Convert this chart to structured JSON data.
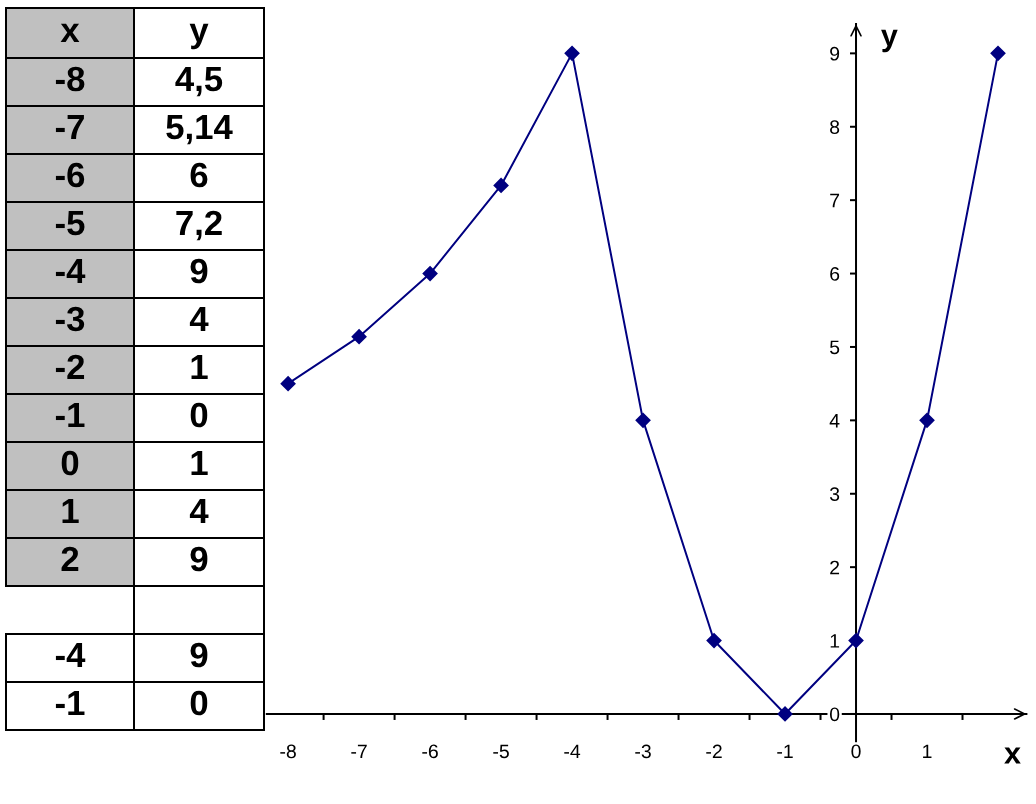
{
  "chart_data": {
    "type": "line",
    "xlabel": "x",
    "ylabel": "y",
    "x": [
      -8,
      -7,
      -6,
      -5,
      -4,
      -3,
      -2,
      -1,
      0,
      1,
      2
    ],
    "series": [
      {
        "color": "#000080",
        "values": [
          4.5,
          5.14,
          6,
          7.2,
          9,
          4,
          1,
          0,
          1,
          4,
          9
        ]
      }
    ],
    "marker": "diamond",
    "line_style": "solid",
    "xlim": [
      -8.3,
      2.4
    ],
    "ylim": [
      -0.6,
      9.4
    ],
    "xticks": [
      -8,
      {
        "value": -7.5,
        "label": null
      },
      -7,
      {
        "value": -6.5,
        "label": null
      },
      -6,
      {
        "value": -5.5,
        "label": null
      },
      -5,
      {
        "value": -4.5,
        "label": null
      },
      -4,
      {
        "value": -3.5,
        "label": null
      },
      -3,
      {
        "value": -2.5,
        "label": null
      },
      -2,
      {
        "value": -1.5,
        "label": null
      },
      -1,
      {
        "value": -0.5,
        "label": null
      },
      0,
      {
        "value": 0.5,
        "label": null
      },
      1,
      {
        "value": 1.5,
        "label": null
      }
    ],
    "yticks": [
      0,
      1,
      2,
      3,
      4,
      5,
      6,
      7,
      8,
      9
    ],
    "annotations": [
      "-8",
      "4,5",
      "-7",
      "5,14",
      "-6",
      "6",
      "-5",
      "7,2",
      "-4",
      "9",
      "-3",
      "4",
      "-2",
      "1",
      "-1",
      "0",
      "0",
      "1",
      "1",
      "4",
      "2",
      "9",
      "-4",
      "9",
      "-1",
      "0"
    ]
  }
}
